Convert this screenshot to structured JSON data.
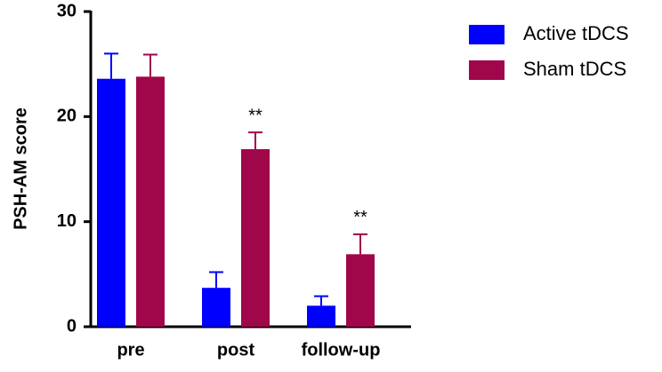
{
  "chart_data": {
    "type": "bar",
    "y_label": "PSH-AM score",
    "categories": [
      "pre",
      "post",
      "follow-up"
    ],
    "series": [
      {
        "name": "Active tDCS",
        "color": "#0000ff",
        "values": [
          23.6,
          3.7,
          2.0
        ],
        "errors": [
          2.4,
          1.5,
          0.9
        ]
      },
      {
        "name": "Sham tDCS",
        "color": "#a0064a",
        "values": [
          23.8,
          16.9,
          6.9
        ],
        "errors": [
          2.1,
          1.6,
          1.9
        ],
        "annotations": [
          null,
          "**",
          "**"
        ]
      }
    ],
    "ylim": [
      0,
      30
    ],
    "yticks": [
      0,
      10,
      20,
      30
    ],
    "legend": "top-right"
  }
}
